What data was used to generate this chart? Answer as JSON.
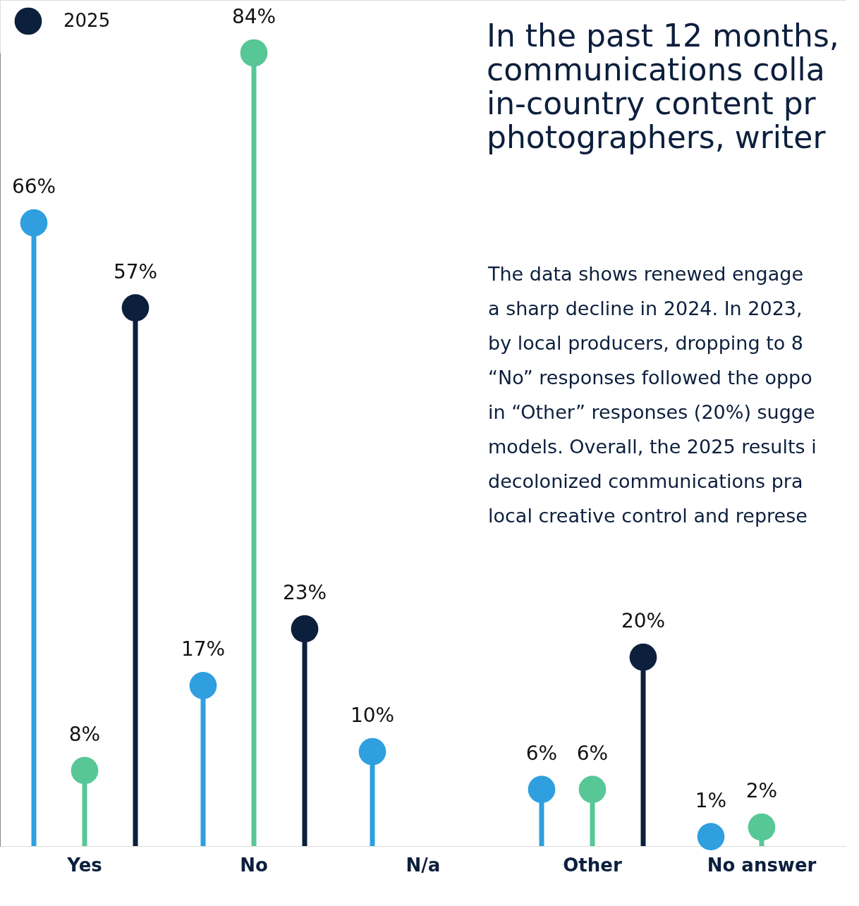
{
  "chart_data": {
    "type": "lollipop",
    "title": [
      "In the past 12 months,",
      "communications colla",
      "in-country content pr",
      "photographers, writer"
    ],
    "annotations": [
      "The data shows renewed engage\na sharp decline in 2024. In 2023,\nby local producers, dropping to 8\n“No” responses followed the oppo\nin “Other” responses (20%) sugge\nmodels. Overall, the 2025 results i\ndecolonized communications pra\nlocal creative control and represe"
    ],
    "categories": [
      "Yes",
      "No",
      "N/a",
      "Other",
      "No answer"
    ],
    "legend": "top left",
    "grid": false,
    "marker": "circle",
    "series": [
      {
        "color": "#2f9fe0",
        "values": [
          66,
          17,
          10,
          6,
          1
        ],
        "value_labels": [
          "66%",
          "17%",
          "10%",
          "6%",
          "1%"
        ]
      },
      {
        "color": "#57c796",
        "values": [
          8,
          84,
          null,
          6,
          2
        ],
        "value_labels": [
          "8%",
          "84%",
          null,
          "6%",
          "2%"
        ]
      },
      {
        "name": "2025",
        "color": "#0c1f3d",
        "values": [
          57,
          23,
          null,
          20,
          null
        ],
        "value_labels": [
          "57%",
          "23%",
          null,
          "20%",
          null
        ]
      }
    ]
  }
}
